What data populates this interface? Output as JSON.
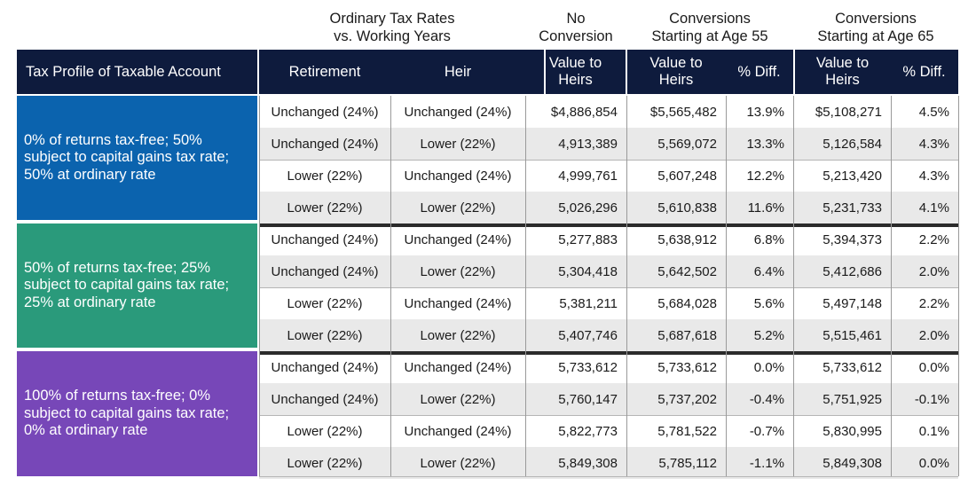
{
  "super_headers": {
    "ordinary": [
      "Ordinary Tax Rates",
      "vs. Working Years"
    ],
    "no_conversion": [
      "No",
      "Conversion"
    ],
    "conv55": [
      "Conversions",
      "Starting at Age 55"
    ],
    "conv65": [
      "Conversions",
      "Starting at Age 65"
    ]
  },
  "headers": {
    "profile": "Tax Profile of Taxable Account",
    "retirement": "Retirement",
    "heir": "Heir",
    "value_heirs_1": [
      "Value to",
      "Heirs"
    ],
    "value_heirs_2": [
      "Value to",
      "Heirs"
    ],
    "pct_diff_1": "% Diff.",
    "value_heirs_3": [
      "Value to",
      "Heirs"
    ],
    "pct_diff_2": "% Diff."
  },
  "colors": {
    "header_bg": "#0e1b3d",
    "group_blue": "#0b63ae",
    "group_teal": "#2a9a7b",
    "group_purple": "#7747b8",
    "row_shade": "#e9e9e9"
  },
  "groups": [
    {
      "label": "0% of returns tax-free; 50% subject to capital gains tax rate; 50% at ordinary rate",
      "rows": [
        {
          "retirement": "Unchanged (24%)",
          "heir": "Unchanged (24%)",
          "no_conv": "$4,886,854",
          "v55": "$5,565,482",
          "d55": "13.9%",
          "v65": "$5,108,271",
          "d65": "4.5%"
        },
        {
          "retirement": "Unchanged (24%)",
          "heir": "Lower (22%)",
          "no_conv": "4,913,389",
          "v55": "5,569,072",
          "d55": "13.3%",
          "v65": "5,126,584",
          "d65": "4.3%"
        },
        {
          "retirement": "Lower (22%)",
          "heir": "Unchanged (24%)",
          "no_conv": "4,999,761",
          "v55": "5,607,248",
          "d55": "12.2%",
          "v65": "5,213,420",
          "d65": "4.3%"
        },
        {
          "retirement": "Lower (22%)",
          "heir": "Lower (22%)",
          "no_conv": "5,026,296",
          "v55": "5,610,838",
          "d55": "11.6%",
          "v65": "5,231,733",
          "d65": "4.1%"
        }
      ]
    },
    {
      "label": "50% of returns tax-free; 25% subject to capital gains tax rate; 25% at ordinary rate",
      "rows": [
        {
          "retirement": "Unchanged (24%)",
          "heir": "Unchanged (24%)",
          "no_conv": "5,277,883",
          "v55": "5,638,912",
          "d55": "6.8%",
          "v65": "5,394,373",
          "d65": "2.2%"
        },
        {
          "retirement": "Unchanged (24%)",
          "heir": "Lower (22%)",
          "no_conv": "5,304,418",
          "v55": "5,642,502",
          "d55": "6.4%",
          "v65": "5,412,686",
          "d65": "2.0%"
        },
        {
          "retirement": "Lower (22%)",
          "heir": "Unchanged (24%)",
          "no_conv": "5,381,211",
          "v55": "5,684,028",
          "d55": "5.6%",
          "v65": "5,497,148",
          "d65": "2.2%"
        },
        {
          "retirement": "Lower (22%)",
          "heir": "Lower (22%)",
          "no_conv": "5,407,746",
          "v55": "5,687,618",
          "d55": "5.2%",
          "v65": "5,515,461",
          "d65": "2.0%"
        }
      ]
    },
    {
      "label": "100% of returns tax-free; 0% subject to capital gains tax rate; 0% at ordinary rate",
      "rows": [
        {
          "retirement": "Unchanged (24%)",
          "heir": "Unchanged (24%)",
          "no_conv": "5,733,612",
          "v55": "5,733,612",
          "d55": "0.0%",
          "v65": "5,733,612",
          "d65": "0.0%"
        },
        {
          "retirement": "Unchanged (24%)",
          "heir": "Lower (22%)",
          "no_conv": "5,760,147",
          "v55": "5,737,202",
          "d55": "-0.4%",
          "v65": "5,751,925",
          "d65": "-0.1%"
        },
        {
          "retirement": "Lower (22%)",
          "heir": "Unchanged (24%)",
          "no_conv": "5,822,773",
          "v55": "5,781,522",
          "d55": "-0.7%",
          "v65": "5,830,995",
          "d65": "0.1%"
        },
        {
          "retirement": "Lower (22%)",
          "heir": "Lower (22%)",
          "no_conv": "5,849,308",
          "v55": "5,785,112",
          "d55": "-1.1%",
          "v65": "5,849,308",
          "d65": "0.0%"
        }
      ]
    }
  ]
}
